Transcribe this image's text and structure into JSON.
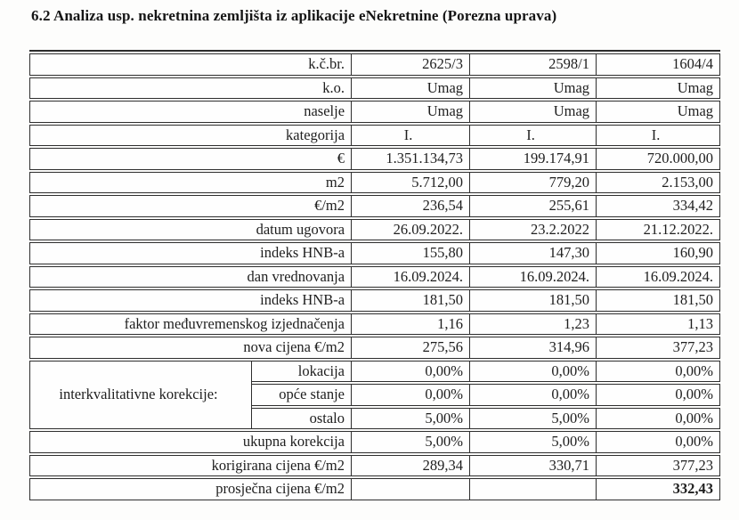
{
  "title": "6.2 Analiza usp. nekretnina zemljišta iz aplikacije eNekretnine (Porezna uprava)",
  "table": {
    "rows": [
      {
        "label": "k.č.br.",
        "values": [
          "2625/3",
          "2598/1",
          "1604/4"
        ],
        "align": "right"
      },
      {
        "label": "k.o.",
        "values": [
          "Umag",
          "Umag",
          "Umag"
        ],
        "align": "right"
      },
      {
        "label": "naselje",
        "values": [
          "Umag",
          "Umag",
          "Umag"
        ],
        "align": "right"
      },
      {
        "label": "kategorija",
        "values": [
          "I.",
          "I.",
          "I."
        ],
        "align": "center"
      },
      {
        "label": "€",
        "values": [
          "1.351.134,73",
          "199.174,91",
          "720.000,00"
        ],
        "align": "right"
      },
      {
        "label": "m2",
        "values": [
          "5.712,00",
          "779,20",
          "2.153,00"
        ],
        "align": "right"
      },
      {
        "label": "€/m2",
        "values": [
          "236,54",
          "255,61",
          "334,42"
        ],
        "align": "right"
      },
      {
        "label": "datum ugovora",
        "values": [
          "26.09.2022.",
          "23.2.2022",
          "21.12.2022."
        ],
        "align": "right"
      },
      {
        "label": "indeks HNB-a",
        "values": [
          "155,80",
          "147,30",
          "160,90"
        ],
        "align": "right"
      },
      {
        "label": "dan vrednovanja",
        "values": [
          "16.09.2024.",
          "16.09.2024.",
          "16.09.2024."
        ],
        "align": "right"
      },
      {
        "label": "indeks HNB-a",
        "values": [
          "181,50",
          "181,50",
          "181,50"
        ],
        "align": "right"
      },
      {
        "label": "faktor međuvremenskog izjednačenja",
        "values": [
          "1,16",
          "1,23",
          "1,13"
        ],
        "align": "right"
      },
      {
        "label": "nova cijena €/m2",
        "values": [
          "275,56",
          "314,96",
          "377,23"
        ],
        "align": "right"
      }
    ],
    "korekcije": {
      "group_label": "interkvalitativne korekcije:",
      "sub_rows": [
        {
          "label": "lokacija",
          "values": [
            "0,00%",
            "0,00%",
            "0,00%"
          ]
        },
        {
          "label": "opće stanje",
          "values": [
            "0,00%",
            "0,00%",
            "0,00%"
          ]
        },
        {
          "label": "ostalo",
          "values": [
            "5,00%",
            "5,00%",
            "0,00%"
          ]
        }
      ]
    },
    "bottom_rows": [
      {
        "label": "ukupna korekcija",
        "values": [
          "5,00%",
          "5,00%",
          "0,00%"
        ],
        "bold_last": false
      },
      {
        "label": "korigirana cijena €/m2",
        "values": [
          "289,34",
          "330,71",
          "377,23"
        ],
        "bold_last": false
      },
      {
        "label": "prosječna cijena €/m2",
        "values": [
          "",
          "",
          "332,43"
        ],
        "bold_last": true
      }
    ]
  }
}
